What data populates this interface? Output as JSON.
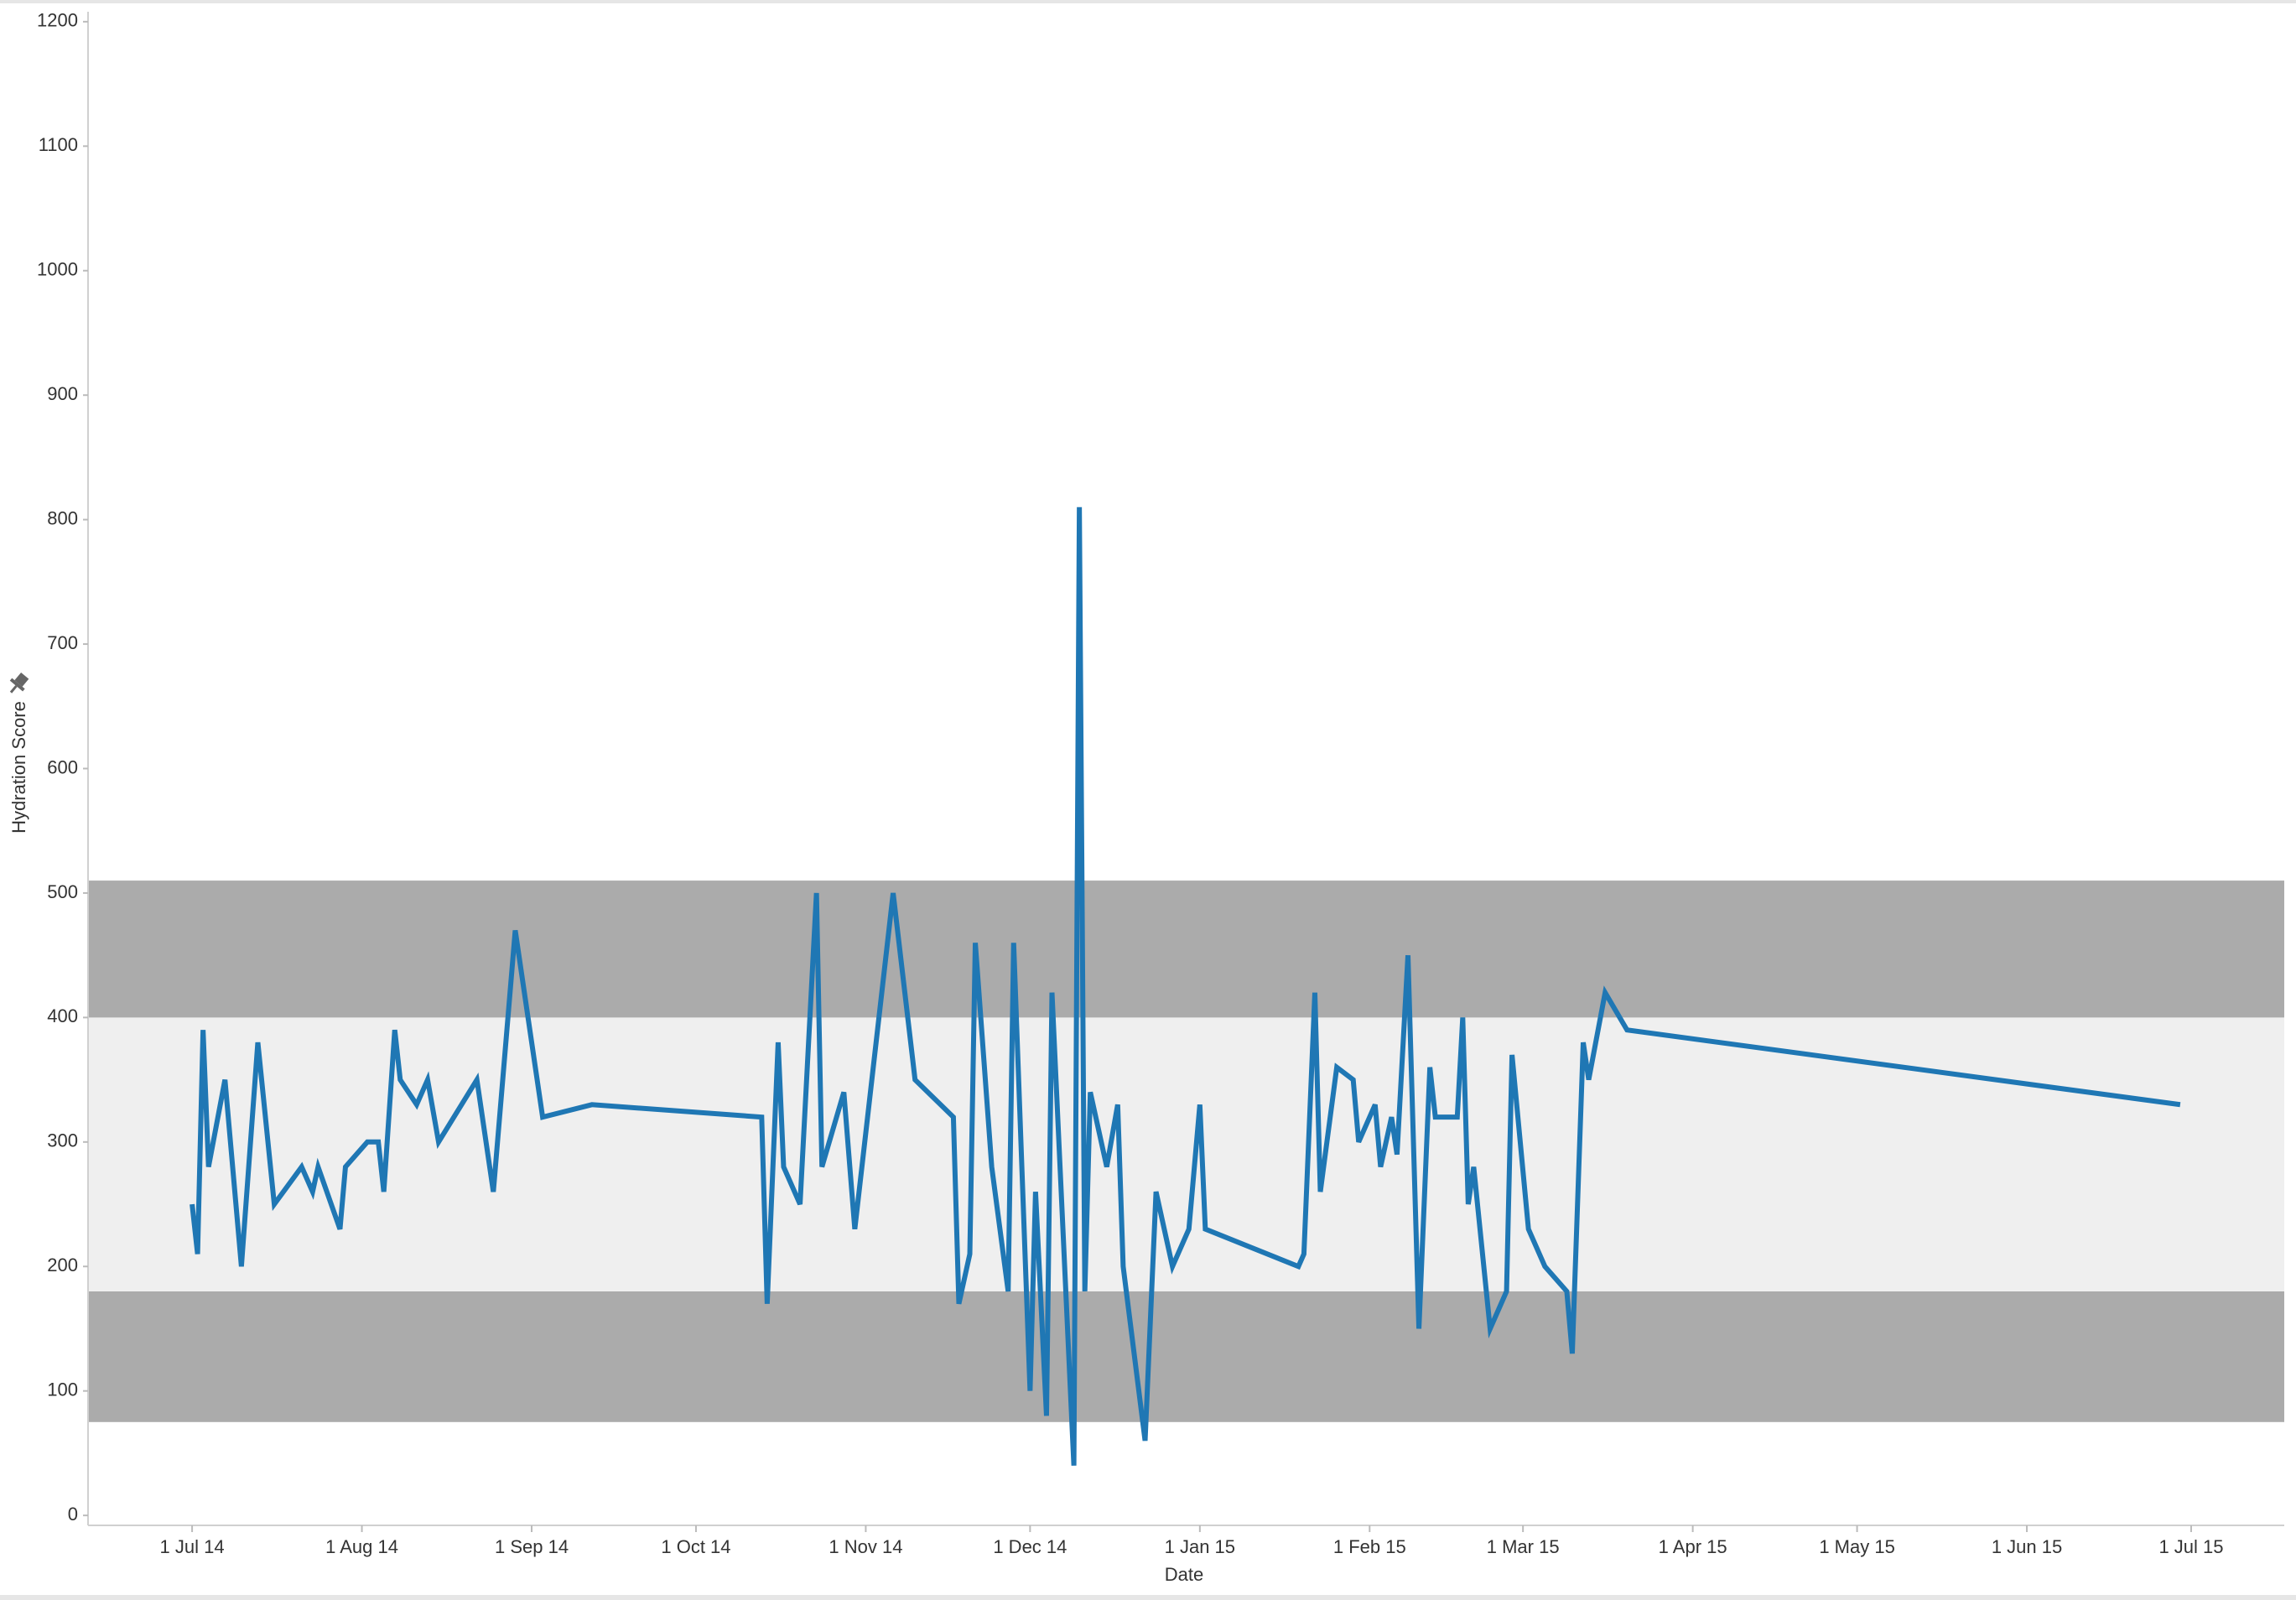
{
  "chart_data": {
    "type": "line",
    "x_label": "Date",
    "y_label": "Hydration Score",
    "xlim": [
      "2014-06-12",
      "2015-07-18"
    ],
    "ylim": [
      -8,
      1208
    ],
    "xticks": [
      {
        "value": "2014-07-01",
        "label": "1 Jul 14"
      },
      {
        "value": "2014-08-01",
        "label": "1 Aug 14"
      },
      {
        "value": "2014-09-01",
        "label": "1 Sep 14"
      },
      {
        "value": "2014-10-01",
        "label": "1 Oct 14"
      },
      {
        "value": "2014-11-01",
        "label": "1 Nov 14"
      },
      {
        "value": "2014-12-01",
        "label": "1 Dec 14"
      },
      {
        "value": "2015-01-01",
        "label": "1 Jan 15"
      },
      {
        "value": "2015-02-01",
        "label": "1 Feb 15"
      },
      {
        "value": "2015-03-01",
        "label": "1 Mar 15"
      },
      {
        "value": "2015-04-01",
        "label": "1 Apr 15"
      },
      {
        "value": "2015-05-01",
        "label": "1 May 15"
      },
      {
        "value": "2015-06-01",
        "label": "1 Jun 15"
      },
      {
        "value": "2015-07-01",
        "label": "1 Jul 15"
      }
    ],
    "yticks": [
      0,
      100,
      200,
      300,
      400,
      500,
      600,
      700,
      800,
      900,
      1000,
      1100,
      1200
    ],
    "reference_bands": [
      {
        "range": [
          75,
          180
        ],
        "color": "#ababab"
      },
      {
        "range": [
          180,
          400
        ],
        "color": "#efefef"
      },
      {
        "range": [
          400,
          510
        ],
        "color": "#ababab"
      }
    ],
    "series": [
      {
        "color": "#1f77b4",
        "x": [
          "2014-07-01",
          "2014-07-02",
          "2014-07-03",
          "2014-07-04",
          "2014-07-07",
          "2014-07-10",
          "2014-07-13",
          "2014-07-16",
          "2014-07-21",
          "2014-07-23",
          "2014-07-24",
          "2014-07-28",
          "2014-07-29",
          "2014-08-02",
          "2014-08-04",
          "2014-08-05",
          "2014-08-07",
          "2014-08-08",
          "2014-08-11",
          "2014-08-13",
          "2014-08-15",
          "2014-08-22",
          "2014-08-25",
          "2014-08-29",
          "2014-09-03",
          "2014-09-12",
          "2014-10-13",
          "2014-10-14",
          "2014-10-16",
          "2014-10-17",
          "2014-10-20",
          "2014-10-23",
          "2014-10-24",
          "2014-10-28",
          "2014-10-30",
          "2014-11-06",
          "2014-11-10",
          "2014-11-17",
          "2014-11-18",
          "2014-11-20",
          "2014-11-21",
          "2014-11-24",
          "2014-11-27",
          "2014-11-28",
          "2014-12-01",
          "2014-12-02",
          "2014-12-04",
          "2014-12-05",
          "2014-12-09",
          "2014-12-10",
          "2014-12-11",
          "2014-12-12",
          "2014-12-15",
          "2014-12-17",
          "2014-12-18",
          "2014-12-22",
          "2014-12-24",
          "2014-12-27",
          "2014-12-30",
          "2015-01-01",
          "2015-01-02",
          "2015-01-19",
          "2015-01-20",
          "2015-01-22",
          "2015-01-23",
          "2015-01-26",
          "2015-01-29",
          "2015-01-30",
          "2015-02-02",
          "2015-02-03",
          "2015-02-05",
          "2015-02-06",
          "2015-02-08",
          "2015-02-10",
          "2015-02-12",
          "2015-02-13",
          "2015-02-17",
          "2015-02-18",
          "2015-02-19",
          "2015-02-20",
          "2015-02-23",
          "2015-02-26",
          "2015-02-27",
          "2015-03-02",
          "2015-03-05",
          "2015-03-09",
          "2015-03-10",
          "2015-03-12",
          "2015-03-13",
          "2015-03-16",
          "2015-03-20",
          "2015-06-29"
        ],
        "values": [
          250,
          210,
          390,
          280,
          350,
          200,
          380,
          250,
          280,
          260,
          280,
          230,
          280,
          300,
          300,
          260,
          390,
          350,
          330,
          350,
          300,
          350,
          260,
          470,
          320,
          330,
          320,
          170,
          380,
          280,
          250,
          500,
          280,
          340,
          230,
          500,
          350,
          320,
          170,
          210,
          460,
          280,
          180,
          460,
          100,
          260,
          80,
          420,
          40,
          810,
          180,
          340,
          280,
          330,
          200,
          60,
          260,
          200,
          230,
          330,
          230,
          200,
          210,
          420,
          260,
          360,
          350,
          300,
          330,
          280,
          320,
          290,
          450,
          150,
          360,
          320,
          320,
          400,
          250,
          280,
          150,
          180,
          370,
          230,
          200,
          180,
          130,
          380,
          350,
          420,
          390,
          330
        ]
      }
    ]
  }
}
